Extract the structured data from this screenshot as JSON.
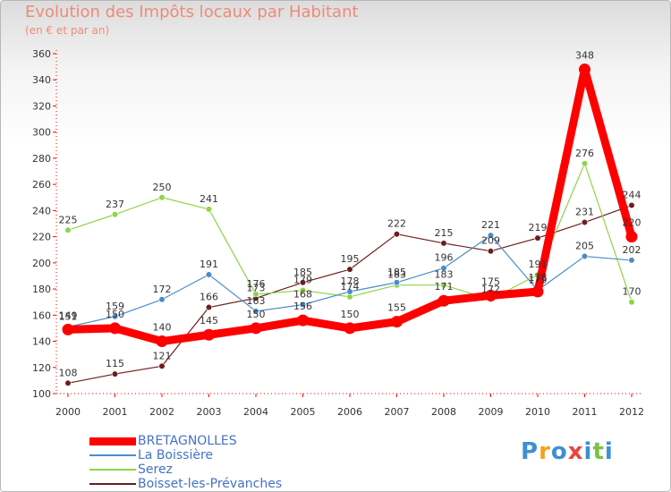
{
  "chart_data": {
    "type": "line",
    "title": "Evolution des Impôts locaux par Habitant",
    "subtitle": "(en € et par an)",
    "categories": [
      "2000",
      "2001",
      "2002",
      "2003",
      "2004",
      "2005",
      "2006",
      "2007",
      "2008",
      "2009",
      "2010",
      "2011",
      "2012"
    ],
    "ylim": [
      100,
      360
    ],
    "yticks": [
      100,
      120,
      140,
      160,
      180,
      200,
      220,
      240,
      260,
      280,
      300,
      320,
      340,
      360
    ],
    "grid": false,
    "legend_position": "bottom-left",
    "series": [
      {
        "name": "BRETAGNOLLES",
        "color": "#ff0000",
        "values": [
          149,
          150,
          140,
          145,
          150,
          156,
          150,
          155,
          171,
          175,
          178,
          348,
          220
        ]
      },
      {
        "name": "La Boissière",
        "color": "#4a8cc9",
        "values": [
          151,
          159,
          172,
          191,
          163,
          168,
          178,
          185,
          196,
          221,
          179,
          205,
          202
        ]
      },
      {
        "name": "Serez",
        "color": "#8ed44a",
        "values": [
          225,
          237,
          250,
          241,
          176,
          179,
          174,
          183,
          183,
          172,
          191,
          276,
          170
        ]
      },
      {
        "name": "Boisset-les-Prévanches",
        "color": "#6b1e1e",
        "values": [
          108,
          115,
          121,
          166,
          173,
          185,
          195,
          222,
          215,
          209,
          219,
          231,
          244
        ]
      }
    ]
  },
  "logo": {
    "letters": [
      "P",
      "r",
      "o",
      "x",
      "i",
      "t",
      "i"
    ],
    "colors": [
      "#3d8fd6",
      "#f2a21b",
      "#3d8fd6",
      "#e8453c",
      "#3d8fd6",
      "#7cc242",
      "#3d8fd6"
    ]
  }
}
